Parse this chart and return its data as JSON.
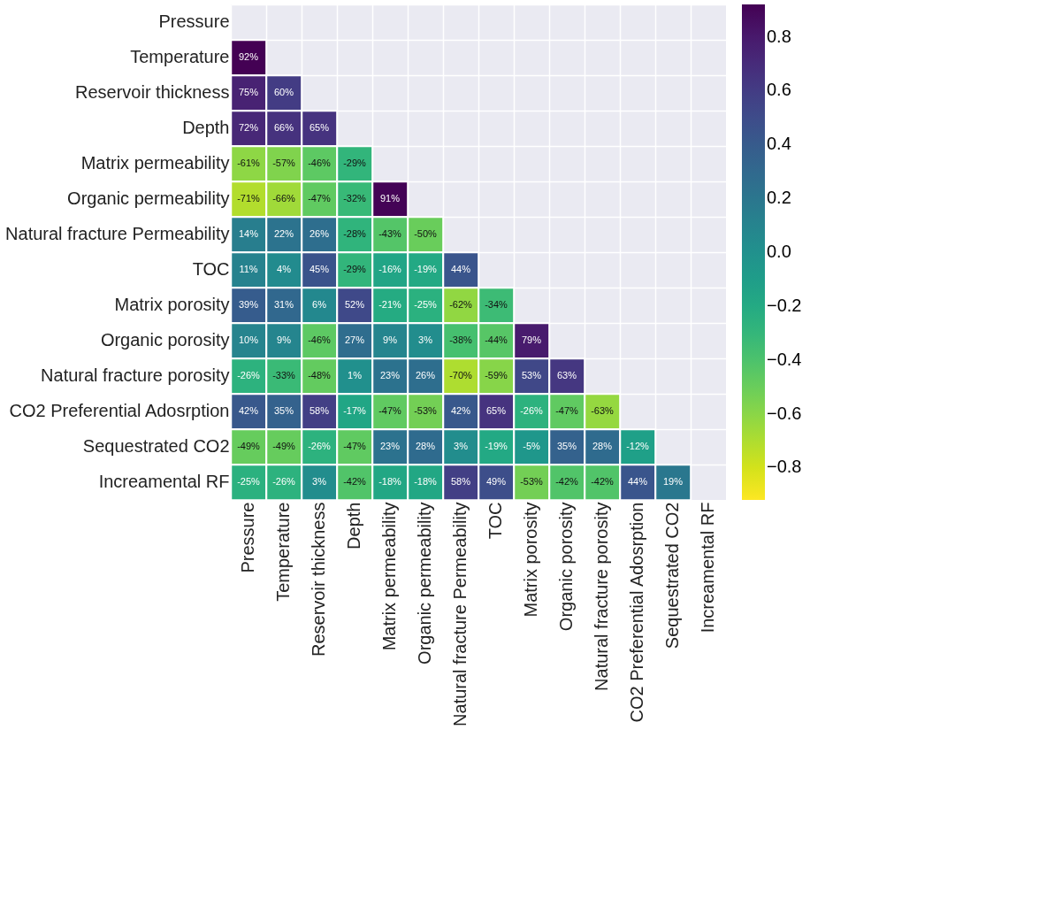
{
  "chart_data": {
    "type": "heatmap",
    "categories": [
      "Pressure",
      "Temperature",
      "Reservoir thickness",
      "Depth",
      "Matrix permeability",
      "Organic permeability",
      "Natural fracture Permeability",
      "TOC",
      "Matrix porosity",
      "Organic porosity",
      "Natural fracture porosity",
      "CO2 Preferential Adosrption",
      "Sequestrated CO2",
      "Increamental RF"
    ],
    "y_categories": [
      "Pressure",
      "Temperature",
      "Reservoir thickness",
      "Depth",
      "Matrix permeability",
      "Organic permeability",
      "Natural fracture Permeability",
      "TOC",
      "Matrix porosity",
      "Organic porosity",
      "Natural fracture porosity",
      "CO2 Preferential Adosrption",
      "Sequestrated CO2",
      "Increamental RF"
    ],
    "cells": [
      [
        null,
        null,
        null,
        null,
        null,
        null,
        null,
        null,
        null,
        null,
        null,
        null,
        null,
        null
      ],
      [
        0.92,
        null,
        null,
        null,
        null,
        null,
        null,
        null,
        null,
        null,
        null,
        null,
        null,
        null
      ],
      [
        0.75,
        0.6,
        null,
        null,
        null,
        null,
        null,
        null,
        null,
        null,
        null,
        null,
        null,
        null
      ],
      [
        0.72,
        0.66,
        0.65,
        null,
        null,
        null,
        null,
        null,
        null,
        null,
        null,
        null,
        null,
        null
      ],
      [
        -0.61,
        -0.57,
        -0.46,
        -0.29,
        null,
        null,
        null,
        null,
        null,
        null,
        null,
        null,
        null,
        null
      ],
      [
        -0.71,
        -0.66,
        -0.47,
        -0.32,
        0.91,
        null,
        null,
        null,
        null,
        null,
        null,
        null,
        null,
        null
      ],
      [
        0.14,
        0.22,
        0.26,
        -0.28,
        -0.43,
        -0.5,
        null,
        null,
        null,
        null,
        null,
        null,
        null,
        null
      ],
      [
        0.11,
        0.04,
        0.45,
        -0.29,
        -0.16,
        -0.19,
        0.44,
        null,
        null,
        null,
        null,
        null,
        null,
        null
      ],
      [
        0.39,
        0.31,
        0.06,
        0.52,
        -0.21,
        -0.25,
        -0.62,
        -0.34,
        null,
        null,
        null,
        null,
        null,
        null
      ],
      [
        0.1,
        0.09,
        -0.46,
        0.27,
        0.09,
        0.03,
        -0.38,
        -0.44,
        0.79,
        null,
        null,
        null,
        null,
        null
      ],
      [
        -0.26,
        -0.33,
        -0.48,
        0.01,
        0.23,
        0.26,
        -0.7,
        -0.59,
        0.53,
        0.63,
        null,
        null,
        null,
        null
      ],
      [
        0.42,
        0.35,
        0.58,
        -0.17,
        -0.47,
        -0.53,
        0.42,
        0.65,
        -0.26,
        -0.47,
        -0.63,
        null,
        null,
        null
      ],
      [
        -0.49,
        -0.49,
        -0.26,
        -0.47,
        0.23,
        0.28,
        0.03,
        -0.19,
        -0.05,
        0.35,
        0.28,
        -0.12,
        null,
        null
      ],
      [
        -0.25,
        -0.26,
        0.03,
        -0.42,
        -0.18,
        -0.18,
        0.58,
        0.49,
        -0.53,
        -0.42,
        -0.42,
        0.44,
        0.19,
        null
      ]
    ],
    "cell_labels": [
      [
        null,
        null,
        null,
        null,
        null,
        null,
        null,
        null,
        null,
        null,
        null,
        null,
        null,
        null
      ],
      [
        "92%",
        null,
        null,
        null,
        null,
        null,
        null,
        null,
        null,
        null,
        null,
        null,
        null,
        null
      ],
      [
        "75%",
        "60%",
        null,
        null,
        null,
        null,
        null,
        null,
        null,
        null,
        null,
        null,
        null,
        null
      ],
      [
        "72%",
        "66%",
        "65%",
        null,
        null,
        null,
        null,
        null,
        null,
        null,
        null,
        null,
        null,
        null
      ],
      [
        "-61%",
        "-57%",
        "-46%",
        "-29%",
        null,
        null,
        null,
        null,
        null,
        null,
        null,
        null,
        null,
        null
      ],
      [
        "-71%",
        "-66%",
        "-47%",
        "-32%",
        "91%",
        null,
        null,
        null,
        null,
        null,
        null,
        null,
        null,
        null
      ],
      [
        "14%",
        "22%",
        "26%",
        "-28%",
        "-43%",
        "-50%",
        null,
        null,
        null,
        null,
        null,
        null,
        null,
        null
      ],
      [
        "11%",
        "4%",
        "45%",
        "-29%",
        "-16%",
        "-19%",
        "44%",
        null,
        null,
        null,
        null,
        null,
        null,
        null
      ],
      [
        "39%",
        "31%",
        "6%",
        "52%",
        "-21%",
        "-25%",
        "-62%",
        "-34%",
        null,
        null,
        null,
        null,
        null,
        null
      ],
      [
        "10%",
        "9%",
        "-46%",
        "27%",
        "9%",
        "3%",
        "-38%",
        "-44%",
        "79%",
        null,
        null,
        null,
        null,
        null
      ],
      [
        "-26%",
        "-33%",
        "-48%",
        "1%",
        "23%",
        "26%",
        "-70%",
        "-59%",
        "53%",
        "63%",
        null,
        null,
        null,
        null
      ],
      [
        "42%",
        "35%",
        "58%",
        "-17%",
        "-47%",
        "-53%",
        "42%",
        "65%",
        "-26%",
        "-47%",
        "-63%",
        null,
        null,
        null
      ],
      [
        "-49%",
        "-49%",
        "-26%",
        "-47%",
        "23%",
        "28%",
        "3%",
        "-19%",
        "-5%",
        "35%",
        "28%",
        "-12%",
        null,
        null
      ],
      [
        "-25%",
        "-26%",
        "3%",
        "-42%",
        "-18%",
        "-18%",
        "58%",
        "49%",
        "-53%",
        "-42%",
        "-42%",
        "44%",
        "19%",
        null
      ]
    ],
    "clim": [
      -0.92,
      0.92
    ],
    "cticks": [
      {
        "value": 0.8,
        "label": "0.8"
      },
      {
        "value": 0.6,
        "label": "0.6"
      },
      {
        "value": 0.4,
        "label": "0.4"
      },
      {
        "value": 0.2,
        "label": "0.2"
      },
      {
        "value": 0.0,
        "label": "0.0"
      },
      {
        "value": -0.2,
        "label": "−0.2"
      },
      {
        "value": -0.4,
        "label": "−0.4"
      },
      {
        "value": -0.6,
        "label": "−0.6"
      },
      {
        "value": -0.8,
        "label": "−0.8"
      }
    ],
    "grid": true
  }
}
